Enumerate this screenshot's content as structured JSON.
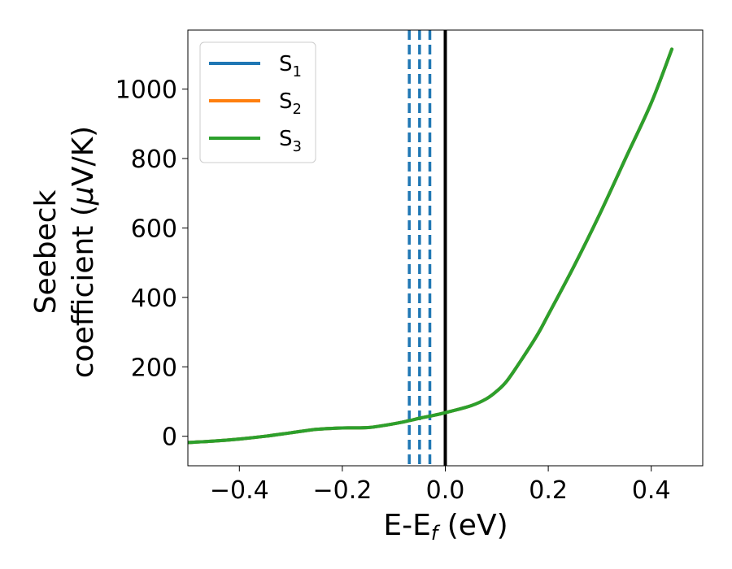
{
  "chart_data": {
    "type": "line",
    "title": "",
    "xlabel": "E-E",
    "xlabel_sub": "f",
    "xlabel_unit": " (eV)",
    "ylabel_line1": "Seebeck",
    "ylabel_line2": "coefficient  (",
    "ylabel_mu": "μ",
    "ylabel_unit": "V/K)",
    "xlim": [
      -0.5,
      0.5
    ],
    "ylim": [
      -85,
      1170
    ],
    "xticks": [
      -0.4,
      -0.2,
      0.0,
      0.2,
      0.4
    ],
    "xtick_labels": [
      "−0.4",
      "−0.2",
      "0.0",
      "0.2",
      "0.4"
    ],
    "yticks": [
      0,
      200,
      400,
      600,
      800,
      1000
    ],
    "ytick_labels": [
      "0",
      "200",
      "400",
      "600",
      "800",
      "1000"
    ],
    "grid": false,
    "legend_position": "top-left",
    "series": [
      {
        "name": "S",
        "sub": "1",
        "color": "#1f77b4",
        "x": [
          -0.5,
          -0.45,
          -0.4,
          -0.35,
          -0.3,
          -0.25,
          -0.2,
          -0.15,
          -0.1,
          -0.07,
          -0.05,
          -0.03,
          0.0,
          0.05,
          0.08,
          0.1,
          0.12,
          0.15,
          0.18,
          0.2,
          0.25,
          0.3,
          0.35,
          0.4,
          0.44
        ],
        "y": [
          -18,
          -14,
          -8,
          0,
          10,
          20,
          24,
          25,
          36,
          45,
          52,
          58,
          68,
          88,
          108,
          130,
          160,
          225,
          295,
          350,
          490,
          640,
          800,
          960,
          1115
        ]
      },
      {
        "name": "S",
        "sub": "2",
        "color": "#ff7f0e",
        "x": [
          -0.5,
          -0.45,
          -0.4,
          -0.35,
          -0.3,
          -0.25,
          -0.2,
          -0.15,
          -0.1,
          -0.07,
          -0.05,
          -0.03,
          0.0,
          0.05,
          0.08,
          0.1,
          0.12,
          0.15,
          0.18,
          0.2,
          0.25,
          0.3,
          0.35,
          0.4,
          0.44
        ],
        "y": [
          -18,
          -14,
          -8,
          0,
          10,
          20,
          24,
          25,
          36,
          45,
          52,
          58,
          68,
          88,
          108,
          130,
          160,
          225,
          295,
          350,
          490,
          640,
          800,
          960,
          1115
        ]
      },
      {
        "name": "S",
        "sub": "3",
        "color": "#2ca02c",
        "x": [
          -0.5,
          -0.45,
          -0.4,
          -0.35,
          -0.3,
          -0.25,
          -0.2,
          -0.15,
          -0.1,
          -0.07,
          -0.05,
          -0.03,
          0.0,
          0.05,
          0.08,
          0.1,
          0.12,
          0.15,
          0.18,
          0.2,
          0.25,
          0.3,
          0.35,
          0.4,
          0.44
        ],
        "y": [
          -18,
          -14,
          -8,
          0,
          10,
          20,
          24,
          25,
          36,
          45,
          52,
          58,
          68,
          88,
          108,
          130,
          160,
          225,
          295,
          350,
          490,
          640,
          800,
          960,
          1115
        ]
      }
    ],
    "vlines": [
      {
        "x": -0.07,
        "style": "dashed",
        "color": "#1f77b4"
      },
      {
        "x": -0.05,
        "style": "dashed",
        "color": "#1f77b4"
      },
      {
        "x": -0.03,
        "style": "dashed",
        "color": "#1f77b4"
      },
      {
        "x": 0.0,
        "style": "solid",
        "color": "#000000"
      }
    ]
  }
}
